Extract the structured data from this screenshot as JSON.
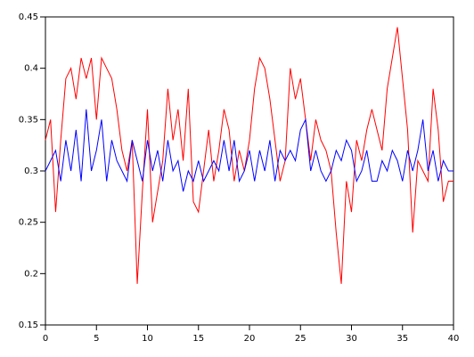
{
  "chart_data": {
    "type": "line",
    "x": [
      0,
      0.5,
      1,
      1.5,
      2,
      2.5,
      3,
      3.5,
      4,
      4.5,
      5,
      5.5,
      6,
      6.5,
      7,
      7.5,
      8,
      8.5,
      9,
      9.5,
      10,
      10.5,
      11,
      11.5,
      12,
      12.5,
      13,
      13.5,
      14,
      14.5,
      15,
      15.5,
      16,
      16.5,
      17,
      17.5,
      18,
      18.5,
      19,
      19.5,
      20,
      20.5,
      21,
      21.5,
      22,
      22.5,
      23,
      23.5,
      24,
      24.5,
      25,
      25.5,
      26,
      26.5,
      27,
      27.5,
      28,
      28.5,
      29,
      29.5,
      30,
      30.5,
      31,
      31.5,
      32,
      32.5,
      33,
      33.5,
      34,
      34.5,
      35,
      35.5,
      36,
      36.5,
      37,
      37.5,
      38,
      38.5,
      39,
      39.5,
      40
    ],
    "series": [
      {
        "color": "#ff0000",
        "values": [
          0.33,
          0.35,
          0.26,
          0.33,
          0.39,
          0.4,
          0.37,
          0.41,
          0.39,
          0.41,
          0.35,
          0.41,
          0.4,
          0.39,
          0.36,
          0.32,
          0.3,
          0.33,
          0.19,
          0.28,
          0.36,
          0.25,
          0.28,
          0.31,
          0.38,
          0.33,
          0.36,
          0.31,
          0.38,
          0.27,
          0.26,
          0.3,
          0.34,
          0.29,
          0.32,
          0.36,
          0.34,
          0.29,
          0.32,
          0.3,
          0.33,
          0.38,
          0.41,
          0.4,
          0.37,
          0.33,
          0.29,
          0.31,
          0.4,
          0.37,
          0.39,
          0.35,
          0.31,
          0.35,
          0.33,
          0.32,
          0.3,
          0.24,
          0.19,
          0.29,
          0.26,
          0.33,
          0.31,
          0.34,
          0.36,
          0.34,
          0.32,
          0.38,
          0.41,
          0.44,
          0.39,
          0.34,
          0.24,
          0.31,
          0.3,
          0.29,
          0.38,
          0.34,
          0.27,
          0.29,
          0.29
        ]
      },
      {
        "color": "#0000ff",
        "values": [
          0.3,
          0.31,
          0.32,
          0.29,
          0.33,
          0.3,
          0.34,
          0.29,
          0.36,
          0.3,
          0.32,
          0.35,
          0.29,
          0.33,
          0.31,
          0.3,
          0.29,
          0.33,
          0.31,
          0.29,
          0.33,
          0.3,
          0.32,
          0.29,
          0.33,
          0.3,
          0.31,
          0.28,
          0.3,
          0.29,
          0.31,
          0.29,
          0.3,
          0.31,
          0.3,
          0.33,
          0.3,
          0.33,
          0.29,
          0.3,
          0.32,
          0.29,
          0.32,
          0.3,
          0.33,
          0.29,
          0.32,
          0.31,
          0.32,
          0.31,
          0.34,
          0.35,
          0.3,
          0.32,
          0.3,
          0.29,
          0.3,
          0.32,
          0.31,
          0.33,
          0.32,
          0.29,
          0.3,
          0.32,
          0.29,
          0.29,
          0.31,
          0.3,
          0.32,
          0.31,
          0.29,
          0.32,
          0.3,
          0.32,
          0.35,
          0.3,
          0.32,
          0.29,
          0.31,
          0.3,
          0.3
        ]
      }
    ],
    "xlim": [
      0,
      40
    ],
    "xticks": [
      0,
      5,
      10,
      15,
      20,
      25,
      30,
      35,
      40
    ],
    "ylim": [
      0.15,
      0.45
    ],
    "yticks": [
      0.15,
      0.2,
      0.25,
      0.3,
      0.35,
      0.4,
      0.45
    ]
  }
}
